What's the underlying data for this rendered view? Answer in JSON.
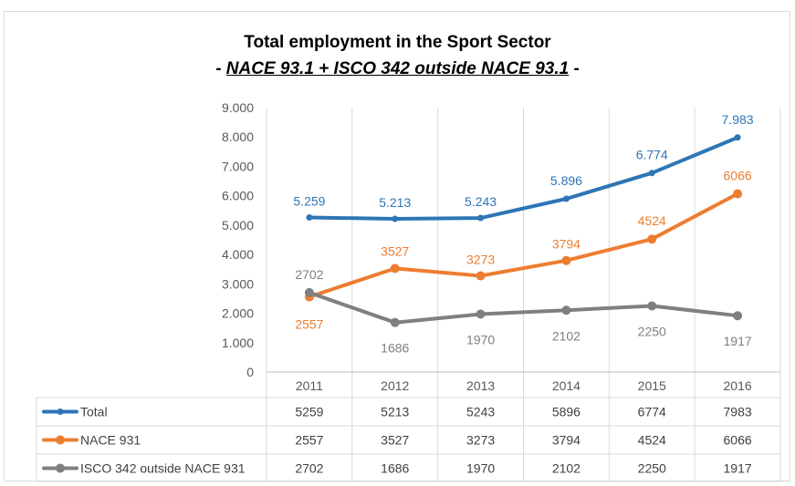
{
  "chart_data": {
    "type": "line",
    "title": "Total employment in the Sport Sector",
    "subtitle_prefix": "- ",
    "subtitle_main": "NACE 93.1 + ISCO 342 outside NACE 93.1",
    "subtitle_suffix": " -",
    "categories": [
      "2011",
      "2012",
      "2013",
      "2014",
      "2015",
      "2016"
    ],
    "y_ticks": [
      "0",
      "1.000",
      "2.000",
      "3.000",
      "4.000",
      "5.000",
      "6.000",
      "7.000",
      "8.000",
      "9.000"
    ],
    "ylim": [
      0,
      9000
    ],
    "grid": "vertical category lines",
    "legend": "data table below chart",
    "series": [
      {
        "name": "Total",
        "color": "#2e75b6",
        "values": [
          5259,
          5213,
          5243,
          5896,
          6774,
          7983
        ],
        "labels": [
          "5.259",
          "5.213",
          "5.243",
          "5.896",
          "6.774",
          "7.983"
        ],
        "table_values": [
          "5259",
          "5213",
          "5243",
          "5896",
          "6774",
          "7983"
        ]
      },
      {
        "name": "NACE 931",
        "color": "#ed7d31",
        "values": [
          2557,
          3527,
          3273,
          3794,
          4524,
          6066
        ],
        "labels": [
          "2557",
          "3527",
          "3273",
          "3794",
          "4524",
          "6066"
        ],
        "table_values": [
          "2557",
          "3527",
          "3273",
          "3794",
          "4524",
          "6066"
        ]
      },
      {
        "name": "ISCO 342 outside NACE 931",
        "color": "#7f7f7f",
        "values": [
          2702,
          1686,
          1970,
          2102,
          2250,
          1917
        ],
        "labels": [
          "2702",
          "1686",
          "1970",
          "2102",
          "2250",
          "1917"
        ],
        "table_values": [
          "2702",
          "1686",
          "1970",
          "2102",
          "2250",
          "1917"
        ]
      }
    ]
  }
}
